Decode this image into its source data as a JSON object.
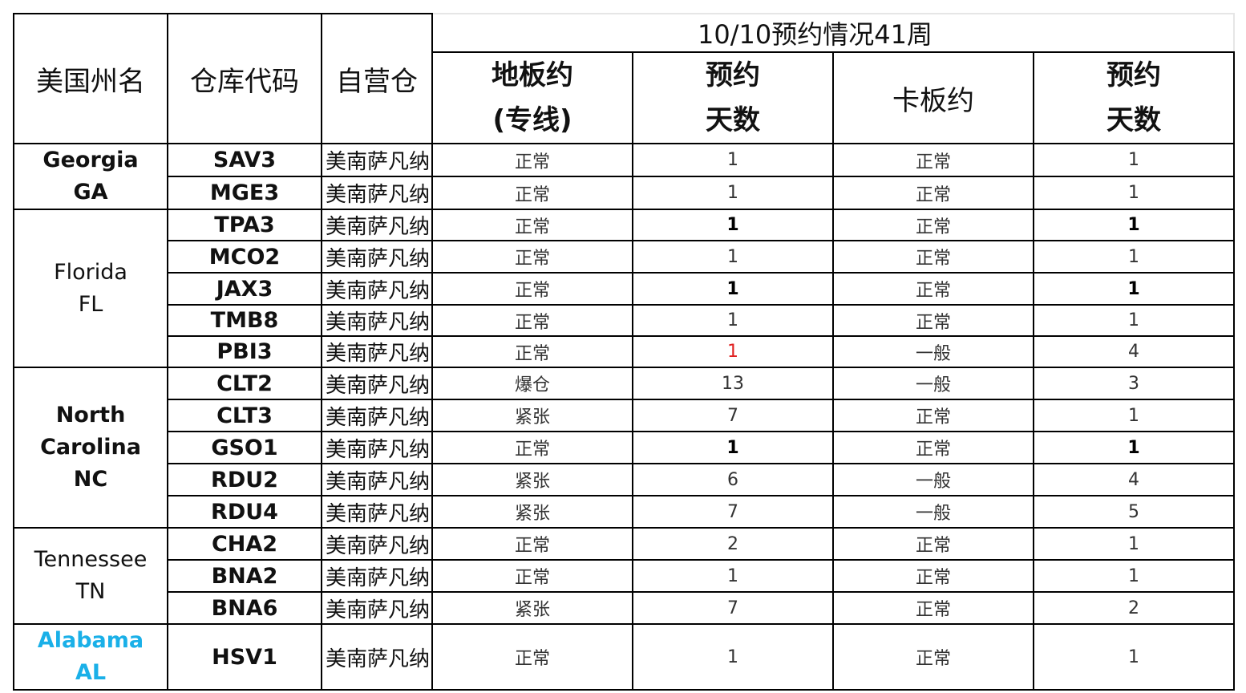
{
  "headers": {
    "state": "美国州名",
    "code": "仓库代码",
    "self": "自营仓",
    "title": "10/10预约情况41周",
    "floor_l1": "地板约",
    "floor_l2": "(专线)",
    "days1_l1": "预约",
    "days1_l2": "天数",
    "truck": "卡板约",
    "days2_l1": "预约",
    "days2_l2": "天数"
  },
  "colors": {
    "alabama": "#1ab0e8",
    "highlight": "#e02020"
  },
  "states": [
    {
      "lines": [
        "Georgia",
        "GA"
      ],
      "bold": true,
      "rows": 2
    },
    {
      "lines": [
        "Florida",
        "FL"
      ],
      "bold": false,
      "rows": 5
    },
    {
      "lines": [
        "North",
        "Carolina",
        "NC"
      ],
      "bold": true,
      "rows": 5
    },
    {
      "lines": [
        "Tennessee",
        "TN"
      ],
      "bold": false,
      "rows": 3
    },
    {
      "lines": [
        "Alabama",
        "AL"
      ],
      "bold": true,
      "rows": 1,
      "color": "#1ab0e8"
    }
  ],
  "rows": [
    {
      "code": "SAV3",
      "warehouse": "美南萨凡纳",
      "floor": "正常",
      "floor_days": "1",
      "truck": "正常",
      "truck_days": "1"
    },
    {
      "code": "MGE3",
      "warehouse": "美南萨凡纳",
      "floor": "正常",
      "floor_days": "1",
      "truck": "正常",
      "truck_days": "1"
    },
    {
      "code": "TPA3",
      "warehouse": "美南萨凡纳",
      "floor": "正常",
      "floor_days": "1",
      "truck": "正常",
      "truck_days": "1",
      "bold": true
    },
    {
      "code": "MCO2",
      "warehouse": "美南萨凡纳",
      "floor": "正常",
      "floor_days": "1",
      "truck": "正常",
      "truck_days": "1"
    },
    {
      "code": "JAX3",
      "warehouse": "美南萨凡纳",
      "floor": "正常",
      "floor_days": "1",
      "truck": "正常",
      "truck_days": "1",
      "bold": true
    },
    {
      "code": "TMB8",
      "warehouse": "美南萨凡纳",
      "floor": "正常",
      "floor_days": "1",
      "truck": "正常",
      "truck_days": "1"
    },
    {
      "code": "PBI3",
      "warehouse": "美南萨凡纳",
      "floor": "正常",
      "floor_days": "1",
      "truck": "一般",
      "truck_days": "4",
      "floor_days_color": "#e02020"
    },
    {
      "code": "CLT2",
      "warehouse": "美南萨凡纳",
      "floor": "爆仓",
      "floor_days": "13",
      "truck": "一般",
      "truck_days": "3"
    },
    {
      "code": "CLT3",
      "warehouse": "美南萨凡纳",
      "floor": "紧张",
      "floor_days": "7",
      "truck": "正常",
      "truck_days": "1"
    },
    {
      "code": "GSO1",
      "warehouse": "美南萨凡纳",
      "floor": "正常",
      "floor_days": "1",
      "truck": "正常",
      "truck_days": "1",
      "bold": true
    },
    {
      "code": "RDU2",
      "warehouse": "美南萨凡纳",
      "floor": "紧张",
      "floor_days": "6",
      "truck": "一般",
      "truck_days": "4"
    },
    {
      "code": "RDU4",
      "warehouse": "美南萨凡纳",
      "floor": "紧张",
      "floor_days": "7",
      "truck": "一般",
      "truck_days": "5"
    },
    {
      "code": "CHA2",
      "warehouse": "美南萨凡纳",
      "floor": "正常",
      "floor_days": "2",
      "truck": "正常",
      "truck_days": "1"
    },
    {
      "code": "BNA2",
      "warehouse": "美南萨凡纳",
      "floor": "正常",
      "floor_days": "1",
      "truck": "正常",
      "truck_days": "1"
    },
    {
      "code": "BNA6",
      "warehouse": "美南萨凡纳",
      "floor": "紧张",
      "floor_days": "7",
      "truck": "正常",
      "truck_days": "2"
    },
    {
      "code": "HSV1",
      "warehouse": "美南萨凡纳",
      "floor": "正常",
      "floor_days": "1",
      "truck": "正常",
      "truck_days": "1"
    }
  ]
}
